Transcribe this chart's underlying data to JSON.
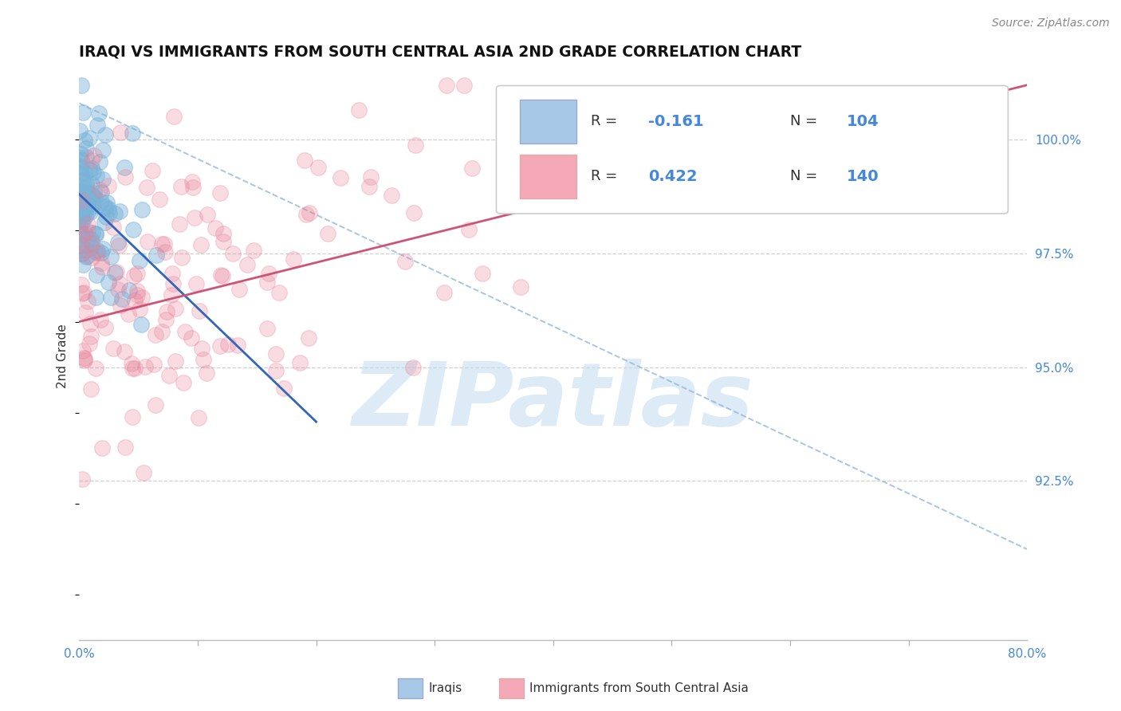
{
  "title": "IRAQI VS IMMIGRANTS FROM SOUTH CENTRAL ASIA 2ND GRADE CORRELATION CHART",
  "source": "Source: ZipAtlas.com",
  "ylabel": "2nd Grade",
  "ylabel_right_ticks": [
    92.5,
    95.0,
    97.5,
    100.0
  ],
  "ylabel_right_labels": [
    "92.5%",
    "95.0%",
    "97.5%",
    "100.0%"
  ],
  "xlim": [
    0.0,
    80.0
  ],
  "ylim": [
    89.0,
    101.5
  ],
  "r_blue": -0.161,
  "n_blue": 104,
  "r_pink": 0.422,
  "n_pink": 140,
  "blue_scatter_color": "#7ab3d8",
  "pink_scatter_color": "#e8829a",
  "blue_legend_color": "#a8c8e8",
  "pink_legend_color": "#f4a8b8",
  "trend_blue_color": "#3366bb",
  "trend_pink_color": "#cc5577",
  "diag_color": "#99bbdd",
  "grid_color": "#cccccc",
  "watermark_color": "#c5dff0",
  "background_color": "#ffffff",
  "seed": 42
}
